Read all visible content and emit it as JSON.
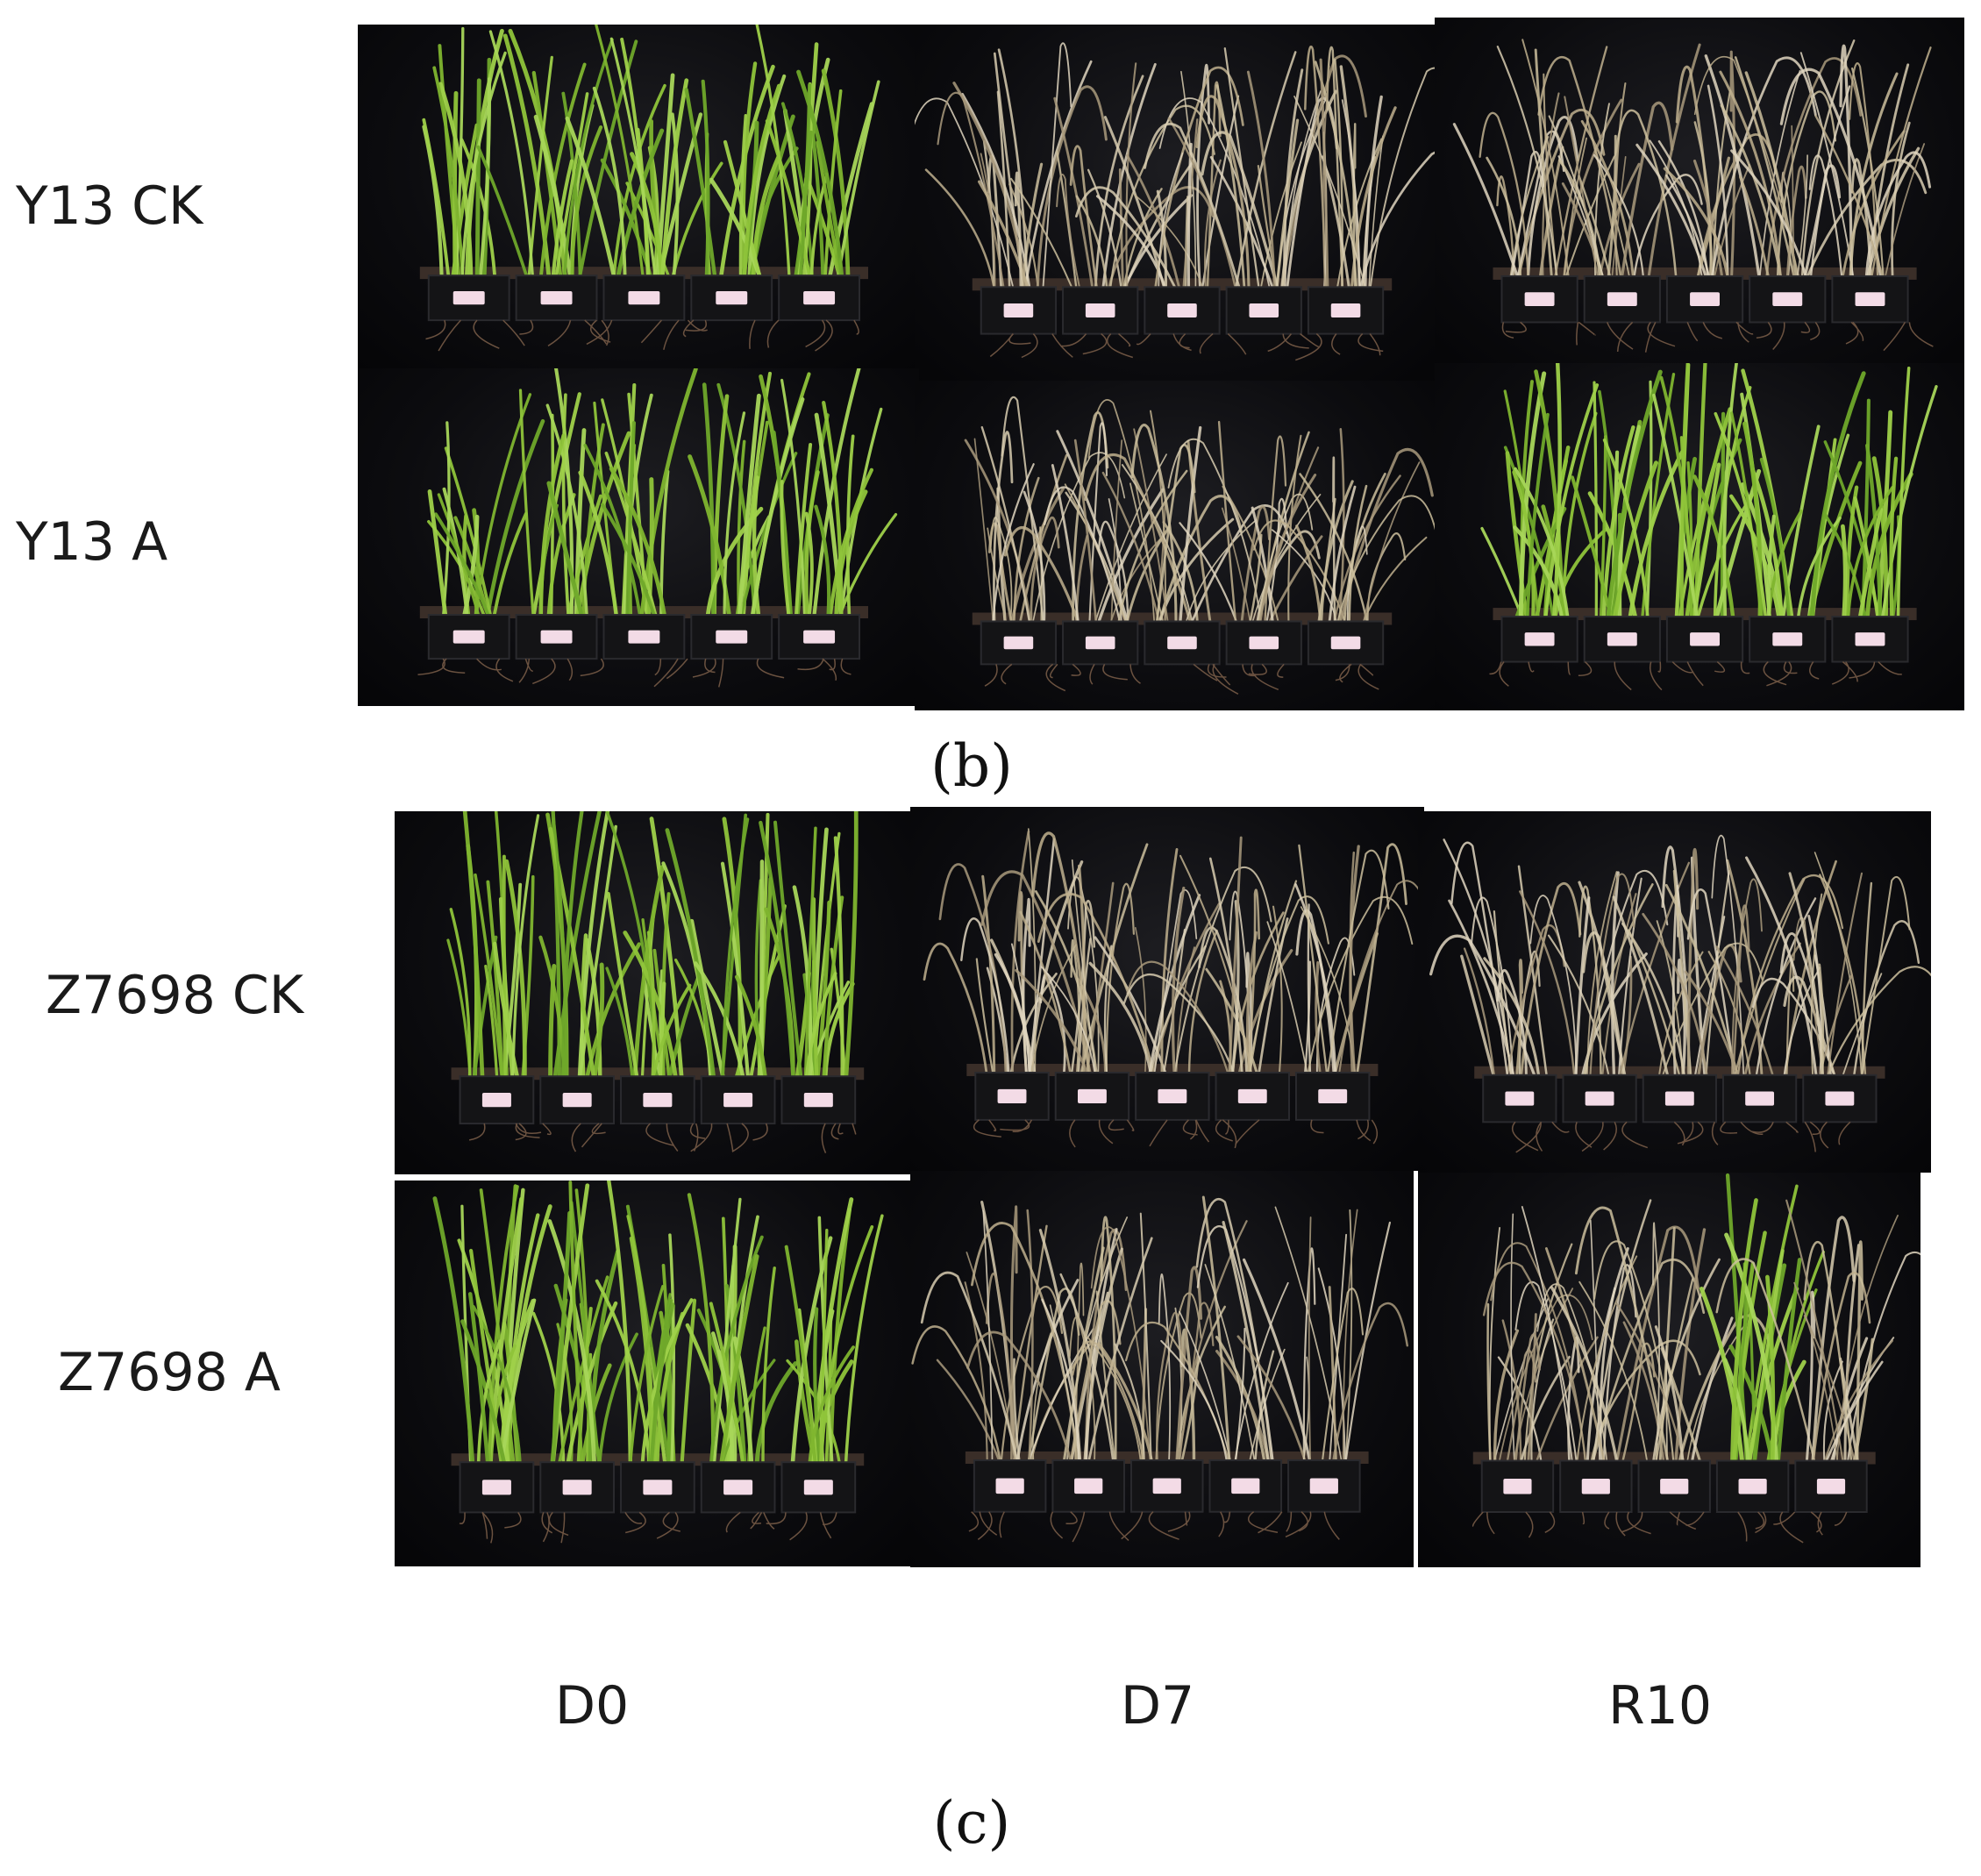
{
  "panel_b": {
    "letter": "(b)",
    "rows": [
      "Y13 CK",
      "Y13 A"
    ]
  },
  "panel_c": {
    "letter": "(c)",
    "rows": [
      "Z7698 CK",
      "Z7698 A"
    ]
  },
  "columns": [
    "D0",
    "D7",
    "R10"
  ],
  "photo_states": [
    [
      "green",
      "dry",
      "dry"
    ],
    [
      "green",
      "dry",
      "mixed"
    ],
    [
      "green",
      "dry",
      "dry"
    ],
    [
      "green",
      "dry",
      "dry-one-green"
    ]
  ],
  "colors": {
    "background": "#050507",
    "healthy_leaf": "#8fc43a",
    "dry_leaf": "#cdbf9e",
    "pot": "#141416",
    "tag": "#f3dbe6"
  }
}
